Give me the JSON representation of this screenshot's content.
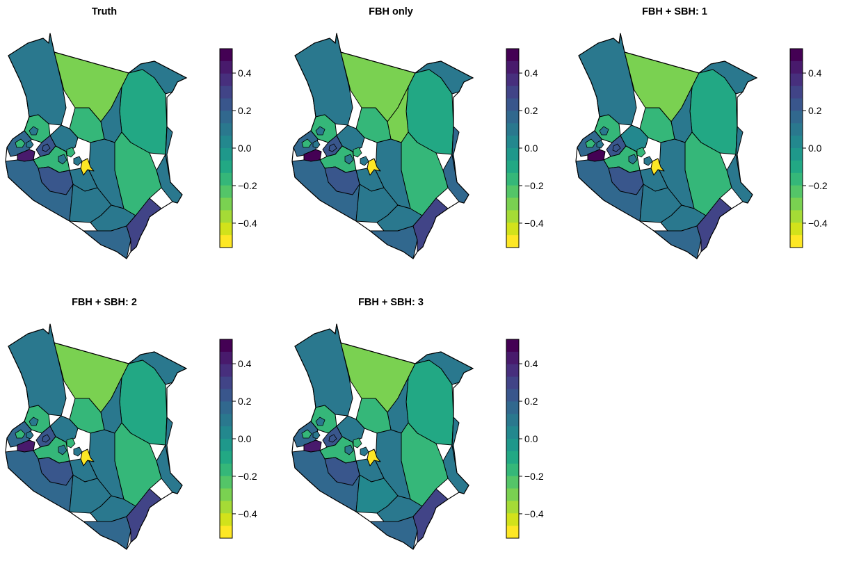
{
  "figure": {
    "panels": [
      {
        "title": "Truth",
        "variant": 0
      },
      {
        "title": "FBH only",
        "variant": 1
      },
      {
        "title": "FBH + SBH: 1",
        "variant": 2
      },
      {
        "title": "FBH + SBH: 2",
        "variant": 3
      },
      {
        "title": "FBH + SBH: 3",
        "variant": 4
      }
    ],
    "colorbar": {
      "min": -0.53,
      "max": 0.53,
      "ticks": [
        0.4,
        0.2,
        0.0,
        -0.2,
        -0.4
      ],
      "tick_labels": [
        "0.4",
        "0.2",
        "0.0",
        "−0.2",
        "−0.4"
      ],
      "colors": [
        "#440154",
        "#481a6c",
        "#472f7d",
        "#414487",
        "#39568c",
        "#31688e",
        "#2a788e",
        "#23888e",
        "#1f988b",
        "#22a884",
        "#35b779",
        "#54c568",
        "#7ad151",
        "#a5db36",
        "#d2e21b",
        "#fde725"
      ]
    }
  }
}
